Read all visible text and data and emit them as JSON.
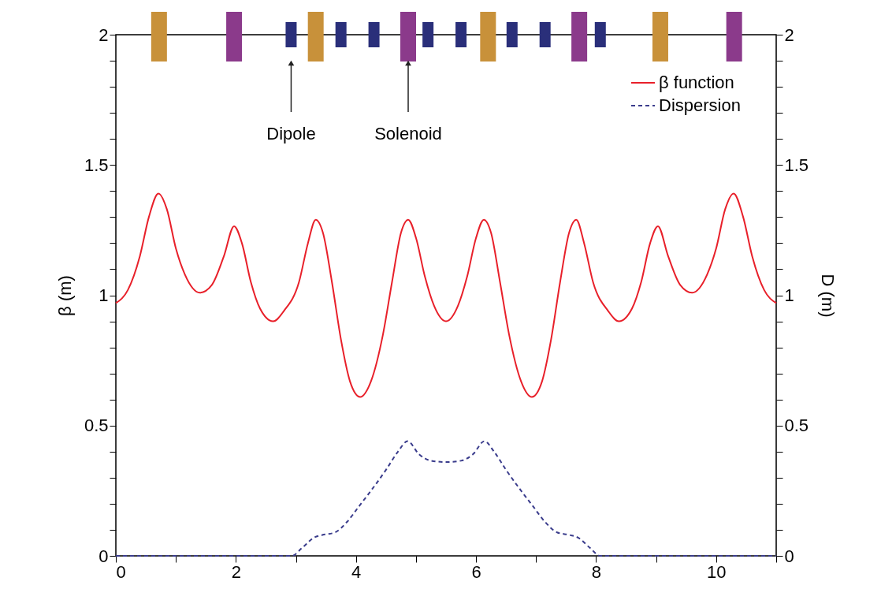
{
  "chart_data": {
    "type": "line",
    "xlabel": null,
    "ylabel": "β (m)",
    "y2label": "D (m)",
    "xlim": [
      0,
      11
    ],
    "xticks": [
      0,
      {
        "value": 1,
        "label": null
      },
      2,
      {
        "value": 3,
        "label": null
      },
      4,
      {
        "value": 5,
        "label": null
      },
      6,
      {
        "value": 7,
        "label": null
      },
      8,
      {
        "value": 9,
        "label": null
      },
      10,
      {
        "value": 11,
        "label": null
      }
    ],
    "ylim": [
      0,
      2
    ],
    "yticks": [
      0,
      {
        "value": 0.1,
        "label": null
      },
      {
        "value": 0.2,
        "label": null
      },
      {
        "value": 0.3,
        "label": null
      },
      {
        "value": 0.4,
        "label": null
      },
      0.5,
      {
        "value": 0.6,
        "label": null
      },
      {
        "value": 0.7,
        "label": null
      },
      {
        "value": 0.8,
        "label": null
      },
      {
        "value": 0.9,
        "label": null
      },
      1,
      {
        "value": 1.1,
        "label": null
      },
      {
        "value": 1.2,
        "label": null
      },
      {
        "value": 1.3,
        "label": null
      },
      {
        "value": 1.4,
        "label": null
      },
      1.5,
      {
        "value": 1.6,
        "label": null
      },
      {
        "value": 1.7,
        "label": null
      },
      {
        "value": 1.8,
        "label": null
      },
      {
        "value": 1.9,
        "label": null
      },
      2
    ],
    "y2lim": [
      0,
      2
    ],
    "y2ticks": [
      0,
      {
        "value": 0.1,
        "label": null
      },
      {
        "value": 0.2,
        "label": null
      },
      {
        "value": 0.3,
        "label": null
      },
      {
        "value": 0.4,
        "label": null
      },
      0.5,
      {
        "value": 0.6,
        "label": null
      },
      {
        "value": 0.7,
        "label": null
      },
      {
        "value": 0.8,
        "label": null
      },
      {
        "value": 0.9,
        "label": null
      },
      1,
      {
        "value": 1.1,
        "label": null
      },
      {
        "value": 1.2,
        "label": null
      },
      {
        "value": 1.3,
        "label": null
      },
      {
        "value": 1.4,
        "label": null
      },
      1.5,
      {
        "value": 1.6,
        "label": null
      },
      {
        "value": 1.7,
        "label": null
      },
      {
        "value": 1.8,
        "label": null
      },
      {
        "value": 1.9,
        "label": null
      },
      2
    ],
    "grid": false,
    "legend": "top right",
    "annotations": [
      "Dipole",
      "Solenoid"
    ],
    "series": [
      {
        "name": "β function",
        "color": "#e8202a",
        "line_style": "solid",
        "x": [
          0,
          0.2,
          0.4,
          0.55,
          0.71,
          0.85,
          1.0,
          1.15,
          1.4,
          1.6,
          1.8,
          1.97,
          2.1,
          2.25,
          2.4,
          2.62,
          2.8,
          3.05,
          3.2,
          3.33,
          3.45,
          3.6,
          3.75,
          3.9,
          4.07,
          4.25,
          4.45,
          4.6,
          4.75,
          4.87,
          5.0,
          5.15,
          5.3,
          5.5,
          5.7,
          5.85,
          6.0,
          6.13,
          6.25,
          6.4,
          6.55,
          6.75,
          6.93,
          7.1,
          7.25,
          7.4,
          7.55,
          7.67,
          7.8,
          7.95,
          8.2,
          8.38,
          8.6,
          8.75,
          8.9,
          9.03,
          9.2,
          9.4,
          9.6,
          9.85,
          10.0,
          10.15,
          10.29,
          10.45,
          10.6,
          10.8,
          11
        ],
        "values": [
          0.97,
          1.02,
          1.15,
          1.3,
          1.39,
          1.33,
          1.18,
          1.08,
          1.01,
          1.04,
          1.15,
          1.265,
          1.2,
          1.05,
          0.95,
          0.9,
          0.94,
          1.05,
          1.2,
          1.29,
          1.24,
          1.05,
          0.83,
          0.67,
          0.61,
          0.67,
          0.85,
          1.05,
          1.24,
          1.29,
          1.22,
          1.07,
          0.96,
          0.9,
          0.96,
          1.07,
          1.22,
          1.29,
          1.24,
          1.05,
          0.85,
          0.67,
          0.61,
          0.67,
          0.83,
          1.05,
          1.24,
          1.29,
          1.2,
          1.05,
          0.94,
          0.9,
          0.95,
          1.05,
          1.2,
          1.265,
          1.15,
          1.04,
          1.01,
          1.08,
          1.18,
          1.33,
          1.39,
          1.3,
          1.15,
          1.02,
          0.97
        ]
      },
      {
        "name": "Dispersion",
        "color": "#3a3c8c",
        "line_style": "dashed",
        "axis": "y2",
        "x": [
          0,
          2.93,
          3.1,
          3.3,
          3.44,
          3.65,
          3.85,
          4.05,
          4.25,
          4.5,
          4.7,
          4.86,
          5.05,
          5.25,
          5.5,
          5.75,
          5.95,
          6.14,
          6.3,
          6.5,
          6.75,
          6.95,
          7.15,
          7.35,
          7.56,
          7.7,
          7.9,
          8.07,
          11
        ],
        "values": [
          0,
          0,
          0.03,
          0.07,
          0.08,
          0.09,
          0.13,
          0.19,
          0.25,
          0.33,
          0.4,
          0.44,
          0.39,
          0.365,
          0.36,
          0.365,
          0.39,
          0.44,
          0.4,
          0.33,
          0.25,
          0.19,
          0.13,
          0.09,
          0.08,
          0.07,
          0.03,
          0,
          0
        ]
      }
    ]
  }
}
